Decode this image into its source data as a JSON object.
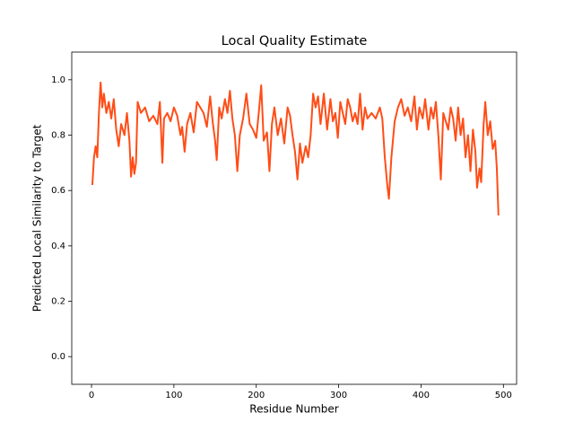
{
  "chart_data": {
    "type": "line",
    "title": "Local Quality Estimate",
    "xlabel": "Residue Number",
    "ylabel": "Predicted Local Similarity to Target",
    "xlim": [
      -24,
      516
    ],
    "xticks": [
      0,
      100,
      200,
      300,
      400,
      500
    ],
    "ylim": [
      -0.1,
      1.1
    ],
    "yticks": [
      {
        "value": 0,
        "label": "0.0"
      },
      0.2,
      0.4,
      0.6,
      0.8,
      {
        "value": 1,
        "label": "1.0"
      }
    ],
    "grid": false,
    "x": [
      1,
      3,
      5,
      7,
      9,
      11,
      13,
      15,
      18,
      21,
      24,
      27,
      30,
      33,
      36,
      40,
      43,
      46,
      48,
      50,
      52,
      54,
      56,
      60,
      65,
      70,
      75,
      80,
      83,
      86,
      88,
      92,
      96,
      100,
      104,
      108,
      110,
      113,
      116,
      120,
      124,
      128,
      132,
      136,
      140,
      144,
      147,
      150,
      152,
      155,
      158,
      162,
      165,
      168,
      171,
      174,
      177,
      180,
      184,
      188,
      192,
      196,
      200,
      203,
      206,
      209,
      213,
      216,
      219,
      222,
      226,
      230,
      234,
      238,
      241,
      244,
      247,
      250,
      253,
      256,
      260,
      263,
      266,
      269,
      272,
      275,
      278,
      282,
      286,
      290,
      293,
      296,
      299,
      302,
      305,
      308,
      311,
      314,
      317,
      320,
      323,
      326,
      329,
      332,
      335,
      340,
      345,
      350,
      353,
      356,
      359,
      361,
      364,
      368,
      372,
      376,
      380,
      384,
      388,
      392,
      395,
      398,
      402,
      405,
      409,
      412,
      415,
      418,
      421,
      424,
      427,
      430,
      433,
      436,
      439,
      442,
      445,
      448,
      451,
      454,
      457,
      460,
      463,
      466,
      468,
      471,
      473,
      476,
      478,
      481,
      484,
      487,
      490,
      492,
      494
    ],
    "series": [
      {
        "color": "#ff4d17",
        "values": [
          0.62,
          0.72,
          0.76,
          0.72,
          0.88,
          0.99,
          0.9,
          0.95,
          0.88,
          0.92,
          0.86,
          0.93,
          0.82,
          0.76,
          0.84,
          0.8,
          0.88,
          0.78,
          0.65,
          0.72,
          0.66,
          0.7,
          0.92,
          0.88,
          0.9,
          0.85,
          0.87,
          0.84,
          0.92,
          0.7,
          0.86,
          0.88,
          0.85,
          0.9,
          0.87,
          0.8,
          0.83,
          0.74,
          0.84,
          0.88,
          0.81,
          0.92,
          0.9,
          0.88,
          0.83,
          0.94,
          0.85,
          0.78,
          0.71,
          0.9,
          0.86,
          0.93,
          0.88,
          0.96,
          0.86,
          0.8,
          0.67,
          0.8,
          0.86,
          0.95,
          0.84,
          0.82,
          0.79,
          0.88,
          0.98,
          0.78,
          0.81,
          0.67,
          0.84,
          0.9,
          0.8,
          0.86,
          0.77,
          0.9,
          0.87,
          0.8,
          0.74,
          0.64,
          0.77,
          0.7,
          0.76,
          0.72,
          0.8,
          0.95,
          0.9,
          0.94,
          0.84,
          0.95,
          0.82,
          0.93,
          0.85,
          0.88,
          0.79,
          0.92,
          0.88,
          0.84,
          0.93,
          0.9,
          0.85,
          0.88,
          0.84,
          0.95,
          0.82,
          0.9,
          0.86,
          0.88,
          0.86,
          0.9,
          0.86,
          0.72,
          0.62,
          0.57,
          0.72,
          0.85,
          0.9,
          0.93,
          0.87,
          0.9,
          0.85,
          0.94,
          0.82,
          0.9,
          0.86,
          0.93,
          0.82,
          0.9,
          0.86,
          0.92,
          0.8,
          0.64,
          0.88,
          0.85,
          0.82,
          0.9,
          0.86,
          0.78,
          0.9,
          0.8,
          0.86,
          0.72,
          0.8,
          0.67,
          0.82,
          0.74,
          0.61,
          0.68,
          0.63,
          0.84,
          0.92,
          0.8,
          0.85,
          0.75,
          0.78,
          0.68,
          0.51
        ]
      }
    ]
  }
}
